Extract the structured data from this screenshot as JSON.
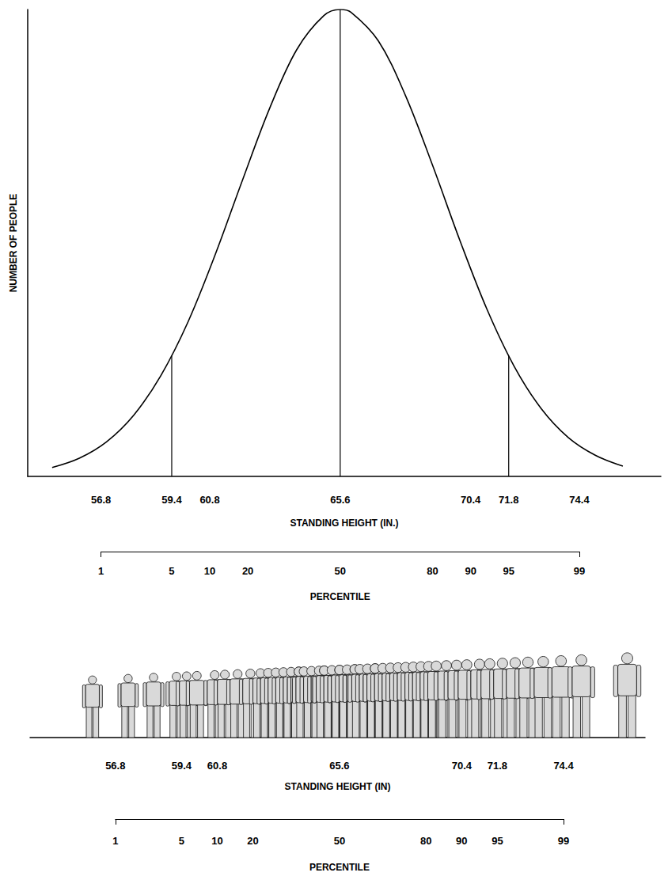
{
  "chart_data": [
    {
      "type": "line",
      "y_label": "NUMBER OF PEOPLE",
      "x_label": "STANDING HEIGHT (IN.)",
      "x": [
        55.0,
        56.0,
        57.0,
        58.0,
        59.0,
        60.0,
        61.0,
        62.0,
        63.0,
        64.0,
        65.0,
        65.6,
        66.0,
        67.0,
        68.0,
        69.0,
        70.0,
        71.0,
        72.0,
        73.0,
        74.0,
        75.0,
        76.0
      ],
      "values": [
        1.9,
        3.9,
        7.4,
        13.1,
        21.6,
        33.1,
        47.5,
        63.4,
        78.8,
        91.4,
        98.7,
        100,
        99.4,
        93.3,
        81.6,
        66.6,
        50.6,
        35.8,
        23.6,
        14.5,
        8.3,
        4.5,
        2.2
      ],
      "reference_lines": {
        "x": [
          59.4,
          65.6,
          71.8
        ],
        "heights": [
          25.8,
          100,
          25.8
        ]
      },
      "color": "#000000",
      "xlim": [
        54.1,
        77.4
      ],
      "xticks": [
        56.8,
        59.4,
        60.8,
        65.6,
        70.4,
        71.8,
        74.4
      ],
      "ylim": [
        0,
        100
      ],
      "yticks": [],
      "tick_labels": "x",
      "grid": false,
      "percentile_axis": {
        "label": "PERCENTILE",
        "xlim": [
          56.8,
          74.4
        ],
        "xticks": [
          {
            "value": 56.8,
            "label": "1"
          },
          {
            "value": 59.4,
            "label": "5"
          },
          {
            "value": 60.8,
            "label": "10"
          },
          {
            "value": 62.2,
            "label": "20"
          },
          {
            "value": 65.6,
            "label": "50"
          },
          {
            "value": 69.0,
            "label": "80"
          },
          {
            "value": 70.4,
            "label": "90"
          },
          {
            "value": 71.8,
            "label": "95"
          },
          {
            "value": 74.4,
            "label": "99"
          }
        ]
      }
    },
    {
      "type": "pictogram",
      "x_label": "STANDING HEIGHT (IN)",
      "x": [
        55.9,
        57.3,
        58.3,
        59.2,
        59.6,
        60.0,
        60.7,
        61.1,
        61.6,
        62.1,
        62.5,
        62.8,
        63.1,
        63.4,
        63.7,
        64.0,
        64.0,
        64.2,
        64.5,
        64.8,
        65.0,
        65.0,
        65.3,
        65.6,
        65.6,
        65.9,
        66.2,
        66.2,
        66.4,
        66.7,
        67.0,
        67.0,
        67.3,
        67.6,
        67.9,
        68.2,
        68.5,
        68.8,
        69.1,
        69.4,
        69.8,
        70.2,
        70.6,
        71.1,
        71.5,
        72.0,
        72.5,
        73.0,
        73.6,
        74.3,
        75.1,
        76.9
      ],
      "color": "#111111",
      "xlim": [
        53.45,
        77.6
      ],
      "xticks": [
        56.8,
        59.4,
        60.8,
        65.6,
        70.4,
        71.8,
        74.4
      ],
      "ylim": [
        0,
        80
      ],
      "yticks": [],
      "tick_labels": "x",
      "grid": false,
      "percentile_axis": {
        "label": "PERCENTILE",
        "xlim": [
          56.8,
          74.4
        ],
        "xticks": [
          {
            "value": 56.8,
            "label": "1"
          },
          {
            "value": 59.4,
            "label": "5"
          },
          {
            "value": 60.8,
            "label": "10"
          },
          {
            "value": 62.2,
            "label": "20"
          },
          {
            "value": 65.6,
            "label": "50"
          },
          {
            "value": 69.0,
            "label": "80"
          },
          {
            "value": 70.4,
            "label": "90"
          },
          {
            "value": 71.8,
            "label": "95"
          },
          {
            "value": 74.4,
            "label": "99"
          }
        ]
      }
    }
  ]
}
